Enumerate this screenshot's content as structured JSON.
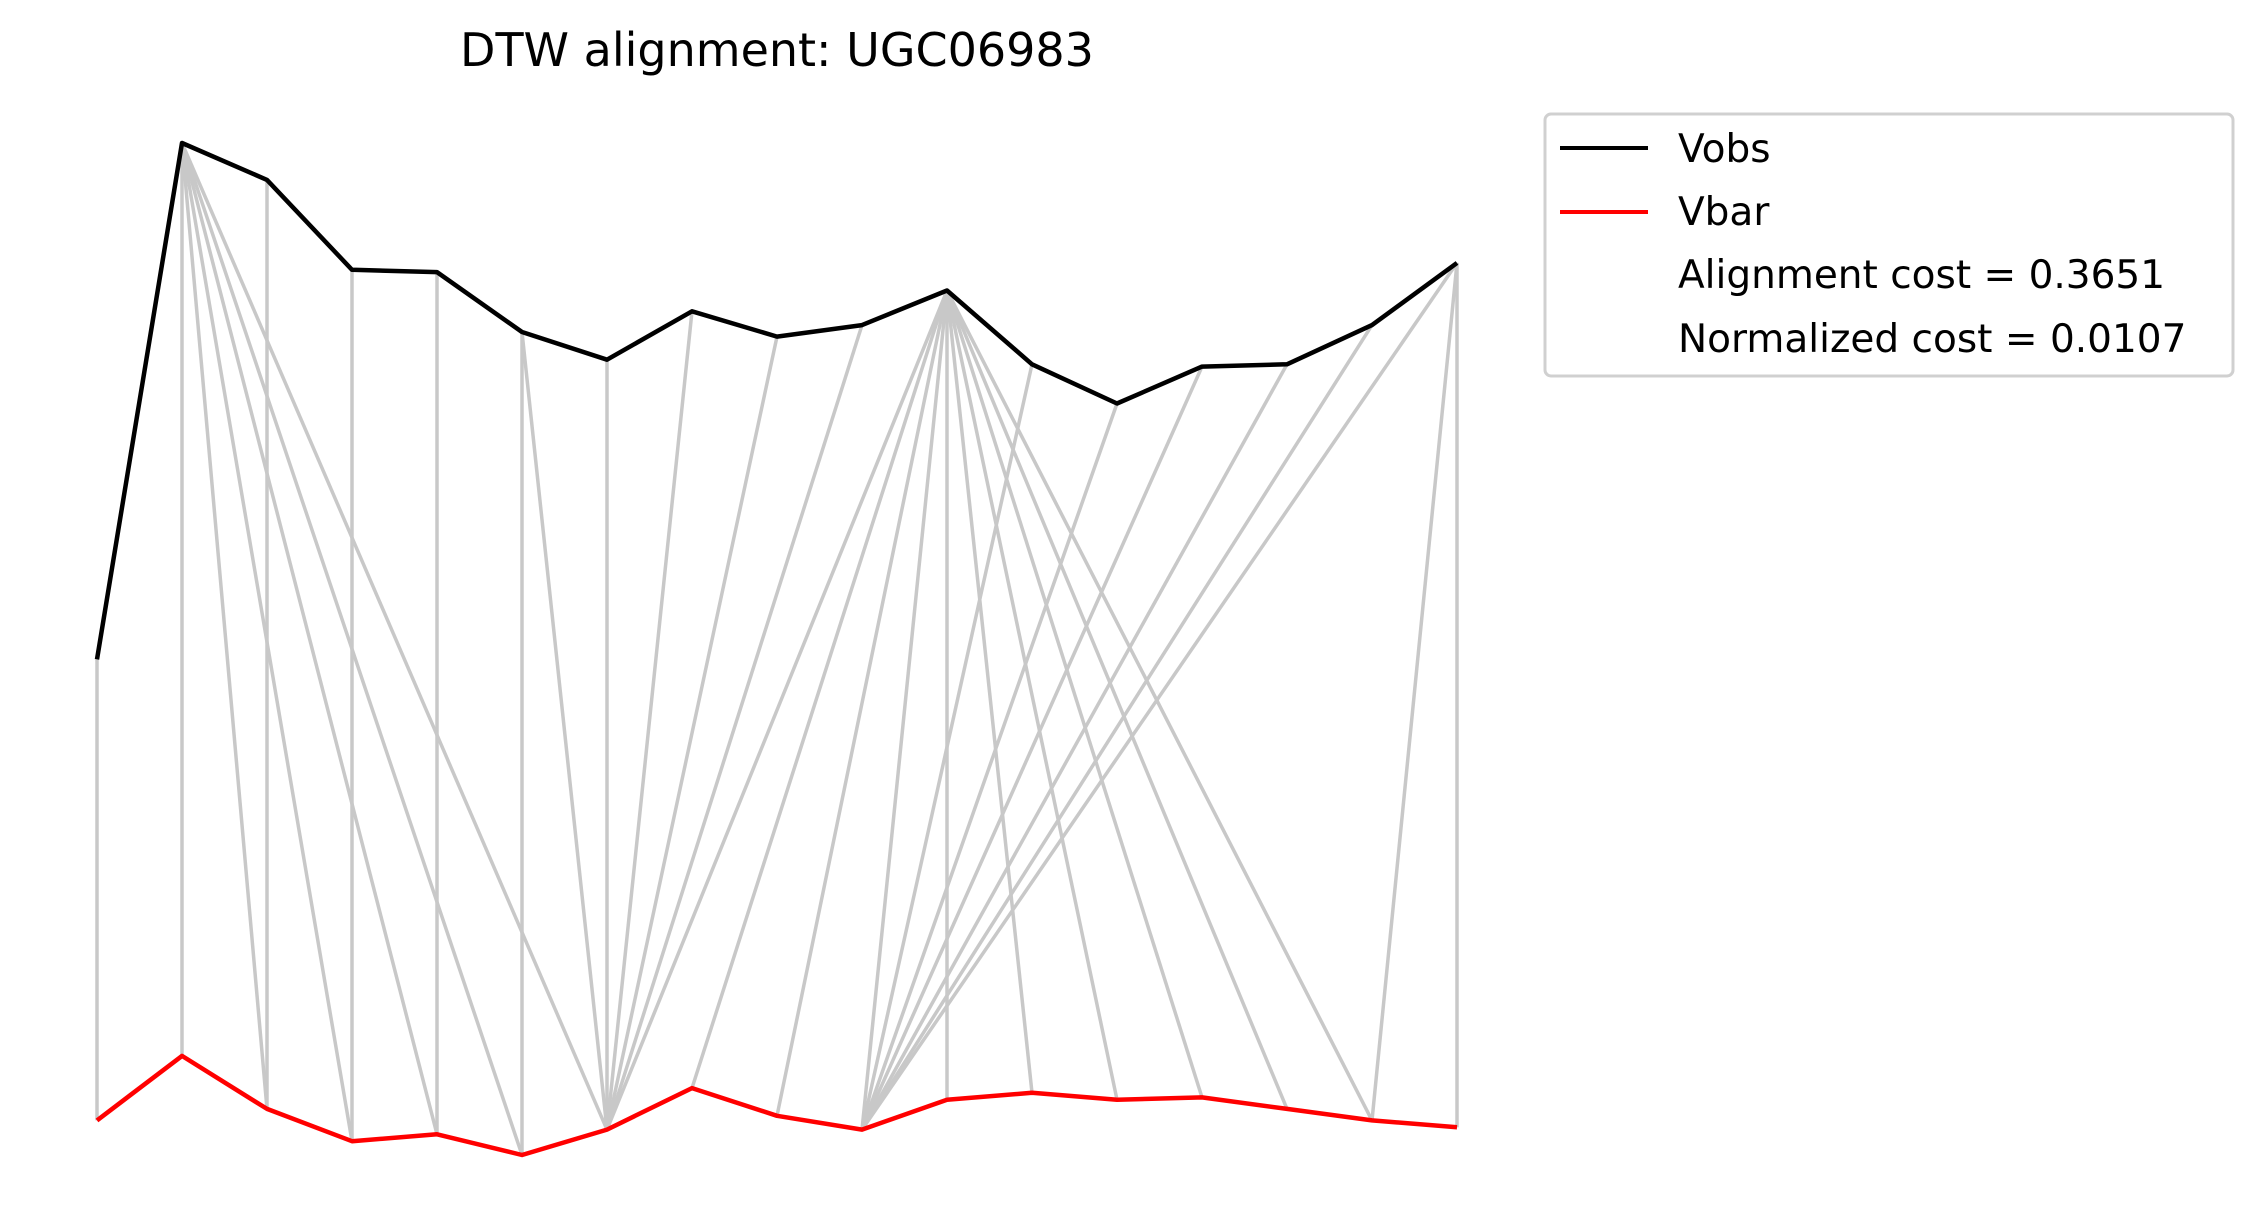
{
  "chart_data": {
    "type": "line",
    "title": "DTW alignment: UGC06983",
    "xlabel": "",
    "ylabel": "",
    "axes_visible": false,
    "grid": false,
    "legend_placement": "outside top-right",
    "series": [
      {
        "name": "Vobs",
        "color": "#000000",
        "x": [
          0,
          1,
          2,
          3,
          4,
          5,
          6,
          7,
          8,
          9,
          10,
          11,
          12,
          13,
          14,
          15,
          16
        ],
        "values": [
          0.7,
          1.82,
          1.74,
          1.545,
          1.54,
          1.41,
          1.35,
          1.455,
          1.4,
          1.425,
          1.5,
          1.34,
          1.255,
          1.335,
          1.34,
          1.425,
          1.56
        ]
      },
      {
        "name": "Vbar",
        "color": "#ff0000",
        "x": [
          0,
          1,
          2,
          3,
          4,
          5,
          6,
          7,
          8,
          9,
          10,
          11,
          12,
          13,
          14,
          15,
          16
        ],
        "values": [
          -0.3,
          -0.16,
          -0.275,
          -0.345,
          -0.33,
          -0.375,
          -0.32,
          -0.23,
          -0.29,
          -0.32,
          -0.255,
          -0.24,
          -0.255,
          -0.25,
          -0.275,
          -0.3,
          -0.315
        ]
      }
    ],
    "alignment_color": "#c8c8c8",
    "alignment_pairs": [
      [
        0,
        0
      ],
      [
        1,
        1
      ],
      [
        1,
        2
      ],
      [
        1,
        3
      ],
      [
        1,
        4
      ],
      [
        1,
        5
      ],
      [
        1,
        6
      ],
      [
        2,
        2
      ],
      [
        3,
        3
      ],
      [
        4,
        4
      ],
      [
        5,
        5
      ],
      [
        5,
        6
      ],
      [
        6,
        6
      ],
      [
        7,
        6
      ],
      [
        8,
        6
      ],
      [
        9,
        6
      ],
      [
        10,
        6
      ],
      [
        10,
        7
      ],
      [
        10,
        8
      ],
      [
        10,
        9
      ],
      [
        10,
        10
      ],
      [
        10,
        11
      ],
      [
        10,
        12
      ],
      [
        10,
        13
      ],
      [
        10,
        14
      ],
      [
        10,
        15
      ],
      [
        11,
        9
      ],
      [
        12,
        9
      ],
      [
        13,
        9
      ],
      [
        14,
        9
      ],
      [
        15,
        9
      ],
      [
        16,
        9
      ],
      [
        16,
        15
      ],
      [
        16,
        16
      ]
    ],
    "legend_extra": [
      "Alignment cost = 0.3651",
      "Normalized cost = 0.0107"
    ]
  }
}
